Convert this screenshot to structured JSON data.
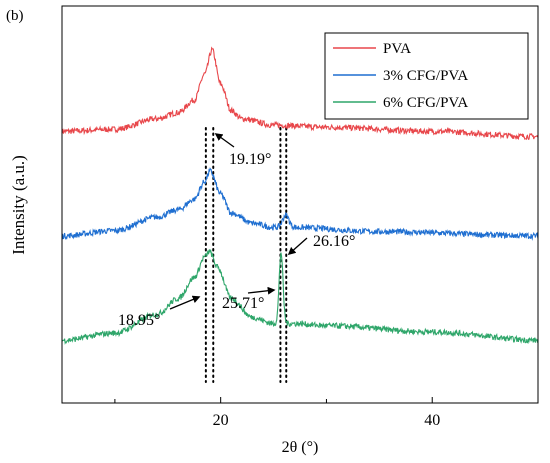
{
  "chart_data": {
    "type": "line",
    "panel_label": "(b)",
    "xlabel": "2θ (°)",
    "ylabel": "Intensity (a.u.)",
    "xlim": [
      5,
      50
    ],
    "xticks": [
      20,
      40
    ],
    "yticks": "none",
    "grid": false,
    "legend_position": "top-right",
    "series": [
      {
        "name": "PVA",
        "color": "#e8474b",
        "offset": 2.0,
        "baseline": [
          [
            5,
            0.0
          ],
          [
            10,
            0.02
          ],
          [
            14,
            0.12
          ],
          [
            16,
            0.18
          ],
          [
            17.5,
            0.3
          ],
          [
            18.5,
            0.55
          ],
          [
            19.19,
            0.78
          ],
          [
            20,
            0.45
          ],
          [
            21,
            0.2
          ],
          [
            22,
            0.12
          ],
          [
            25,
            0.06
          ],
          [
            30,
            0.04
          ],
          [
            40,
            0.0
          ],
          [
            50,
            -0.05
          ]
        ],
        "peaks": []
      },
      {
        "name": "3% CFG/PVA",
        "color": "#1f6fd1",
        "offset": 1.0,
        "baseline": [
          [
            5,
            0.0
          ],
          [
            10,
            0.05
          ],
          [
            14,
            0.18
          ],
          [
            16,
            0.25
          ],
          [
            17.5,
            0.35
          ],
          [
            18.5,
            0.52
          ],
          [
            19.0,
            0.62
          ],
          [
            20,
            0.4
          ],
          [
            21,
            0.22
          ],
          [
            23,
            0.12
          ],
          [
            25,
            0.08
          ],
          [
            27,
            0.08
          ],
          [
            35,
            0.04
          ],
          [
            50,
            0.0
          ]
        ],
        "peaks": [
          {
            "x": 26.16,
            "h": 0.12,
            "w": 0.3
          }
        ]
      },
      {
        "name": "6% CFG/PVA",
        "color": "#2fa66a",
        "offset": 0.0,
        "baseline": [
          [
            5,
            0.0
          ],
          [
            10,
            0.07
          ],
          [
            14,
            0.25
          ],
          [
            16,
            0.4
          ],
          [
            17.5,
            0.6
          ],
          [
            18.5,
            0.8
          ],
          [
            18.95,
            0.85
          ],
          [
            19.7,
            0.7
          ],
          [
            21,
            0.4
          ],
          [
            23,
            0.22
          ],
          [
            25,
            0.16
          ],
          [
            27,
            0.16
          ],
          [
            30,
            0.14
          ],
          [
            40,
            0.08
          ],
          [
            50,
            0.0
          ]
        ],
        "peaks": [
          {
            "x": 25.71,
            "h": 0.68,
            "w": 0.18
          }
        ]
      }
    ],
    "reference_lines": [
      18.6,
      19.3,
      25.65,
      26.2
    ],
    "annotations": [
      {
        "text": "19.19°",
        "x": 19.19,
        "series": 0
      },
      {
        "text": "26.16°",
        "x": 26.16,
        "series": 1
      },
      {
        "text": "18.95°",
        "x": 18.95,
        "series": 2
      },
      {
        "text": "25.71°",
        "x": 25.71,
        "series": 2
      }
    ]
  }
}
